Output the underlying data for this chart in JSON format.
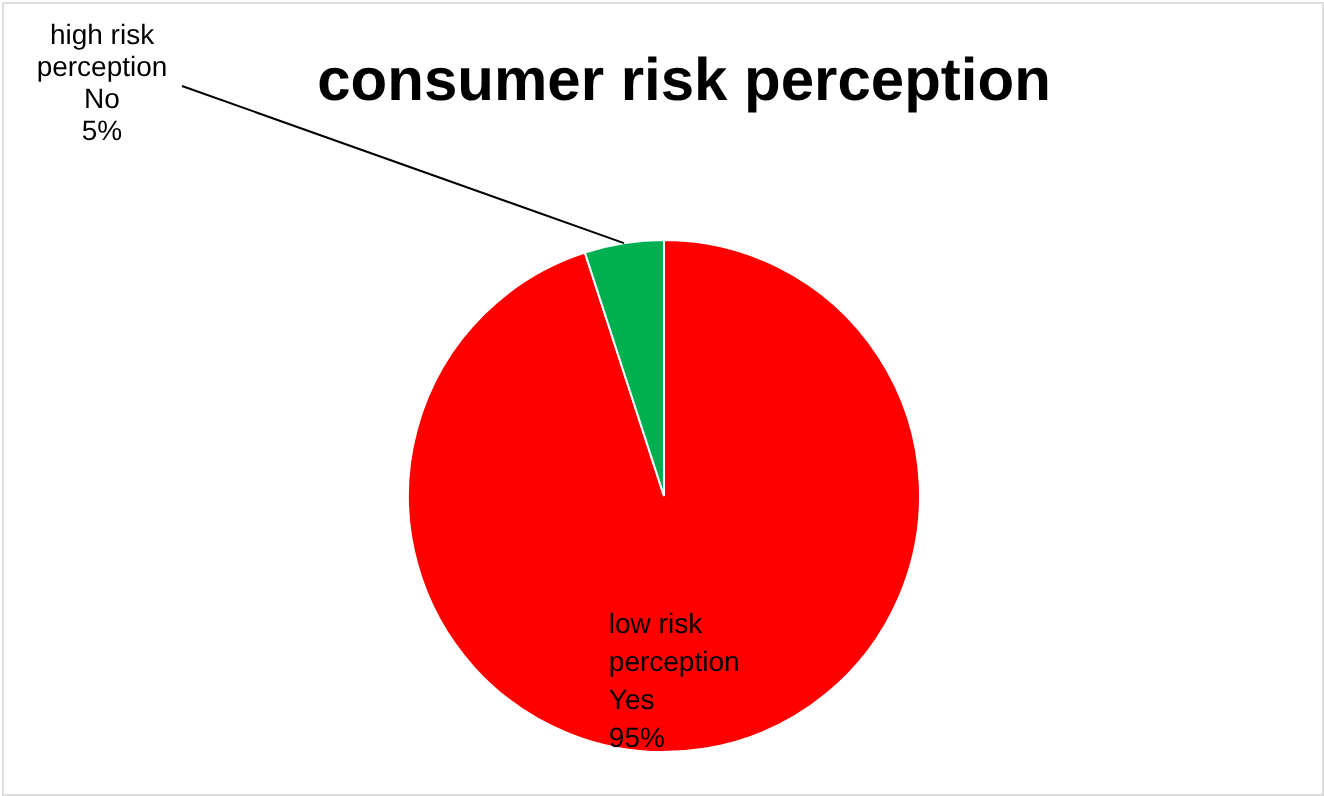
{
  "chart_data": {
    "type": "pie",
    "title": "consumer risk perception",
    "categories": [
      "low risk perception Yes",
      "high risk perception No"
    ],
    "values": [
      95,
      5
    ],
    "colors": [
      "#ff0000",
      "#00b050"
    ],
    "value_labels": [
      "95%",
      "5%"
    ]
  }
}
